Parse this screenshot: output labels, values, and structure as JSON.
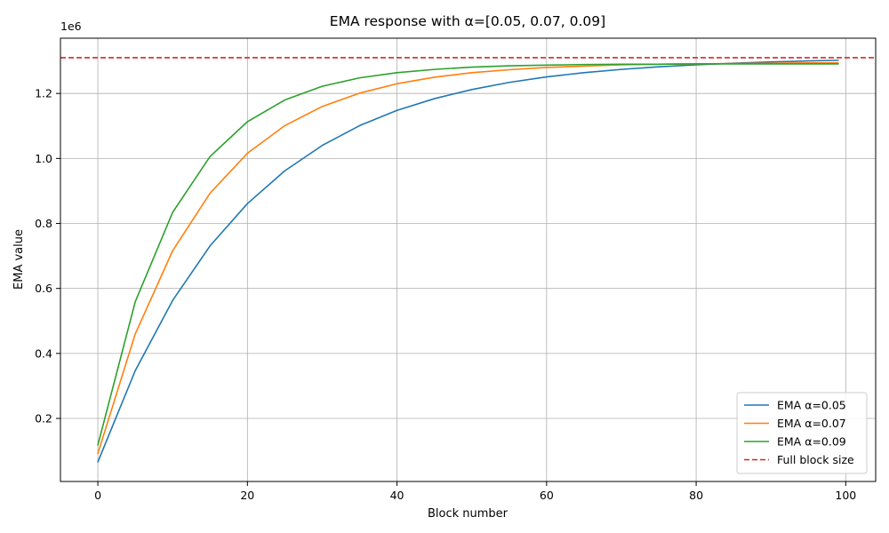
{
  "chart_data": {
    "type": "line",
    "title": "EMA response with α=[0.05, 0.07, 0.09]",
    "xlabel": "Block number",
    "ylabel": "EMA value",
    "y_offset_label": "1e6",
    "xlim": [
      -5,
      104
    ],
    "ylim": [
      0.006,
      1.37
    ],
    "x_ticks": [
      0,
      20,
      40,
      60,
      80,
      100
    ],
    "y_ticks": [
      0.2,
      0.4,
      0.6,
      0.8,
      1.0,
      1.2
    ],
    "x_tick_labels": [
      "0",
      "20",
      "40",
      "60",
      "80",
      "100"
    ],
    "y_tick_labels": [
      "0.2",
      "0.4",
      "0.6",
      "0.8",
      "1.0",
      "1.2"
    ],
    "grid": true,
    "legend_position": "lower-right",
    "x": [
      0,
      5,
      10,
      15,
      20,
      25,
      30,
      35,
      40,
      45,
      50,
      55,
      60,
      65,
      70,
      75,
      80,
      85,
      90,
      95,
      99
    ],
    "series": [
      {
        "name": "EMA α=0.05",
        "color": "#1f77b4",
        "style": "solid",
        "values": [
          0.066,
          0.347,
          0.563,
          0.731,
          0.861,
          0.962,
          1.04,
          1.101,
          1.148,
          1.184,
          1.212,
          1.234,
          1.251,
          1.264,
          1.274,
          1.282,
          1.288,
          1.293,
          1.297,
          1.3,
          1.302
        ]
      },
      {
        "name": "EMA α=0.07",
        "color": "#ff7f0e",
        "style": "solid",
        "values": [
          0.092,
          0.46,
          0.716,
          0.893,
          1.016,
          1.101,
          1.16,
          1.201,
          1.23,
          1.25,
          1.264,
          1.273,
          1.28,
          1.284,
          1.288,
          1.29,
          1.291,
          1.292,
          1.293,
          1.294,
          1.294
        ]
      },
      {
        "name": "EMA α=0.09",
        "color": "#2ca02c",
        "style": "solid",
        "values": [
          0.118,
          0.559,
          0.834,
          1.006,
          1.113,
          1.18,
          1.222,
          1.248,
          1.264,
          1.274,
          1.281,
          1.285,
          1.287,
          1.289,
          1.29,
          1.29,
          1.291,
          1.291,
          1.291,
          1.291,
          1.291
        ]
      }
    ],
    "reference_line": {
      "name": "Full block size",
      "color": "#d62728",
      "style": "dashed",
      "y": 1.31
    }
  }
}
